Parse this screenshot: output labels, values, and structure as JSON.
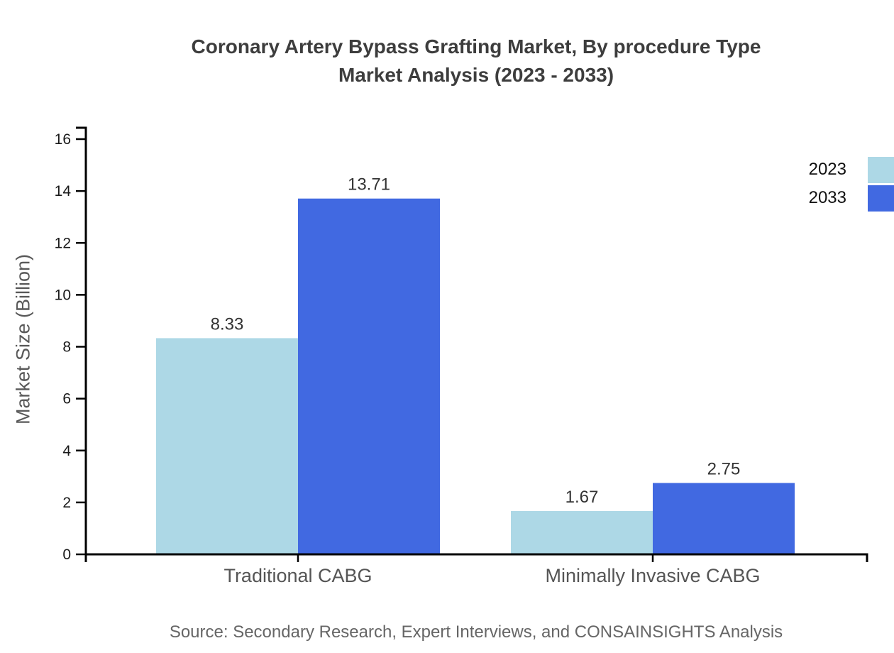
{
  "title": {
    "line1": "Coronary Artery Bypass Grafting Market, By procedure Type",
    "line2": "Market Analysis (2023 - 2033)"
  },
  "source": {
    "text": "Source: Secondary Research, Expert Interviews, and CONSAINSIGHTS Analysis"
  },
  "chart_data": {
    "type": "bar",
    "title": "Coronary Artery Bypass Grafting Market, By procedure Type Market Analysis (2023 - 2033)",
    "categories": [
      "Traditional CABG",
      "Minimally Invasive CABG"
    ],
    "series": [
      {
        "name": "2023",
        "color": "#add8e6",
        "values": [
          8.33,
          1.67
        ]
      },
      {
        "name": "2033",
        "color": "#4169e1",
        "values": [
          13.71,
          2.75
        ]
      }
    ],
    "xlabel": "",
    "ylabel": "Market Size (Billion)",
    "ylim": [
      0,
      16
    ],
    "yticks": [
      0,
      2,
      4,
      6,
      8,
      10,
      12,
      14,
      16
    ],
    "grid": false,
    "legend_position": "top-right",
    "value_labels": true,
    "value_label_format": "2-decimals",
    "axis_color": "#000000",
    "source": "Source: Secondary Research, Expert Interviews, and CONSAINSIGHTS Analysis"
  }
}
